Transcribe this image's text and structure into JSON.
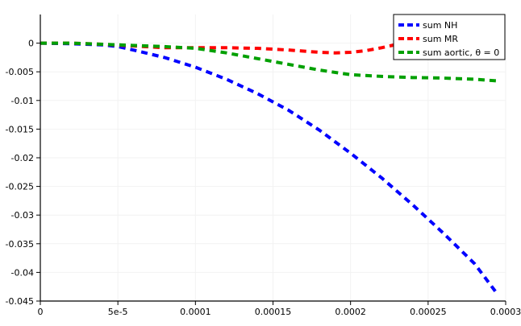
{
  "chart_data": {
    "type": "line",
    "title": "",
    "xlabel": "",
    "ylabel": "",
    "xlim": [
      0,
      0.0003
    ],
    "ylim": [
      -0.045,
      0.005
    ],
    "x_ticks": [
      0,
      5e-05,
      0.0001,
      0.00015,
      0.0002,
      0.00025,
      0.0003
    ],
    "x_tick_labels": [
      "0",
      "5e-5",
      "0.0001",
      "0.00015",
      "0.0002",
      "0.00025",
      "0.0003"
    ],
    "y_ticks": [
      0,
      -0.005,
      -0.01,
      -0.015,
      -0.02,
      -0.025,
      -0.03,
      -0.035,
      -0.04,
      -0.045
    ],
    "y_tick_labels": [
      "0",
      "-0.005",
      "-0.01",
      "-0.015",
      "-0.02",
      "-0.025",
      "-0.03",
      "-0.035",
      "-0.04",
      "-0.045"
    ],
    "grid": true,
    "legend_position": "top-right",
    "series": [
      {
        "name": "sum NH",
        "color": "#0000ff",
        "line_style": "dashed",
        "x": [
          0,
          2e-05,
          4e-05,
          5e-05,
          6e-05,
          8e-05,
          0.0001,
          0.00012,
          0.00014,
          0.00016,
          0.00018,
          0.0002,
          0.00022,
          0.00024,
          0.00026,
          0.00028,
          0.000295
        ],
        "y": [
          0,
          -0.0001,
          -0.0003,
          -0.0006,
          -0.0012,
          -0.0025,
          -0.0042,
          -0.0063,
          -0.0088,
          -0.0117,
          -0.0152,
          -0.0192,
          -0.0235,
          -0.0282,
          -0.0332,
          -0.0385,
          -0.0439
        ]
      },
      {
        "name": "sum MR",
        "color": "#ff0000",
        "line_style": "dashed",
        "x": [
          0,
          2e-05,
          4e-05,
          6e-05,
          8e-05,
          0.0001,
          0.00012,
          0.00014,
          0.00016,
          0.00018,
          0.00019,
          0.0002,
          0.00021,
          0.00022,
          0.00023
        ],
        "y": [
          0,
          0,
          -0.0002,
          -0.0005,
          -0.0008,
          -0.0008,
          -0.0008,
          -0.0009,
          -0.0012,
          -0.0016,
          -0.0017,
          -0.0016,
          -0.0013,
          -0.0008,
          -0.0002
        ]
      },
      {
        "name": "sum aortic, θ = 0",
        "color": "#00a000",
        "line_style": "dashed",
        "x": [
          0,
          2e-05,
          4e-05,
          6e-05,
          8e-05,
          0.0001,
          0.00012,
          0.00014,
          0.00016,
          0.00018,
          0.0002,
          0.00022,
          0.00024,
          0.00026,
          0.00028,
          0.000295
        ],
        "y": [
          0,
          0,
          -0.0002,
          -0.0004,
          -0.0006,
          -0.0009,
          -0.0017,
          -0.0027,
          -0.0037,
          -0.0047,
          -0.0055,
          -0.0058,
          -0.006,
          -0.0061,
          -0.0063,
          -0.0066
        ]
      }
    ]
  }
}
